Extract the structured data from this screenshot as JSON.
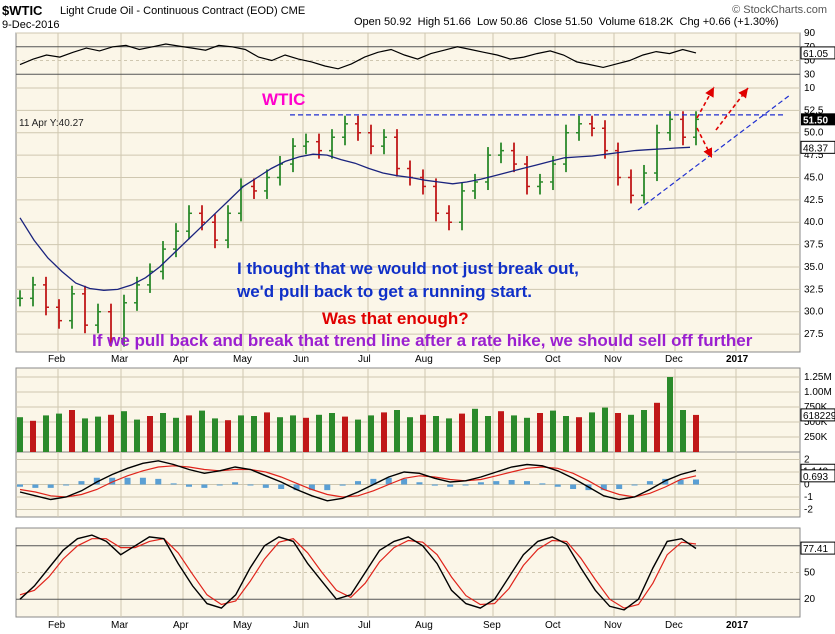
{
  "header": {
    "symbol": "$WTIC",
    "name": "Light Crude Oil - Continuous Contract (EOD)",
    "exchange": "CME",
    "date": "9-Dec-2016",
    "open_label": "Open",
    "open": "50.92",
    "high_label": "High",
    "high": "51.66",
    "low_label": "Low",
    "low": "50.86",
    "close_label": "Close",
    "close": "51.50",
    "volume_label": "Volume",
    "volume": "618.2K",
    "chg_label": "Chg",
    "chg": "+0.66 (+1.30%)",
    "brand": "© StockCharts.com"
  },
  "annotations": {
    "wtic": "WTIC",
    "line1": "I thought that we would not just break out,",
    "line2": "we'd pull back to get a running start.",
    "line3": "Was that enough?",
    "line4": "If we pull back and break that trend line after a rate hike, we should sell off further",
    "hover": "11 Apr Y:40.27"
  },
  "colors": {
    "panel_bg": "#fbf6e8",
    "grid": "#cfc7b0",
    "up": "#2b8a2b",
    "down": "#c01818",
    "ma": "#1a237e",
    "resistance": "#1f2fd0",
    "arrows": "#e00000",
    "macd_hist": "#5a9fd4",
    "signal": "#e0241b",
    "rsi_fill": "#c0c0c0"
  },
  "chart_data": [
    {
      "type": "line",
      "panel": "rsi",
      "ylim": [
        10,
        90
      ],
      "ticks": [
        "90",
        "70",
        "50",
        "30",
        "10"
      ],
      "last_value": "61.05",
      "values": [
        44,
        52,
        58,
        55,
        62,
        68,
        64,
        70,
        72,
        66,
        70,
        74,
        71,
        68,
        65,
        72,
        70,
        66,
        55,
        50,
        58,
        52,
        48,
        42,
        38,
        45,
        55,
        62,
        66,
        58,
        52,
        60,
        65,
        70,
        66,
        62,
        58,
        52,
        55,
        60,
        64,
        58,
        48,
        44,
        40,
        45,
        50,
        58,
        63,
        60,
        66,
        61
      ]
    },
    {
      "type": "bar",
      "panel": "price",
      "title": "",
      "ylim": [
        25.5,
        55
      ],
      "ticks": [
        "27.5",
        "30.0",
        "32.5",
        "35.0",
        "37.5",
        "40.0",
        "42.5",
        "45.0",
        "47.5",
        "50.0",
        "52.5"
      ],
      "x_labels": [
        "Feb",
        "Mar",
        "Apr",
        "May",
        "Jun",
        "Jul",
        "Aug",
        "Sep",
        "Oct",
        "Nov",
        "Dec",
        "2017"
      ],
      "close_label": "51.50",
      "ma_label": "48.37",
      "resistance": 52.0,
      "closes": [
        31.5,
        33.0,
        30.5,
        29.0,
        32.0,
        28.5,
        30.0,
        27.0,
        31.0,
        33.0,
        34.5,
        37.0,
        39.0,
        41.0,
        40.0,
        38.0,
        41.0,
        44.0,
        43.5,
        45.0,
        46.5,
        48.5,
        49.0,
        48.0,
        49.5,
        51.0,
        50.0,
        48.5,
        49.5,
        46.0,
        45.0,
        44.0,
        41.0,
        40.0,
        43.5,
        44.5,
        47.5,
        48.0,
        46.5,
        44.0,
        44.5,
        46.5,
        50.0,
        51.0,
        50.5,
        48.0,
        45.0,
        43.0,
        45.5,
        50.0,
        51.5,
        49.5,
        51.5
      ],
      "ma": [
        40.5,
        38.0,
        36.0,
        34.5,
        33.2,
        32.6,
        32.4,
        32.5,
        33.0,
        33.8,
        35.0,
        36.5,
        38.0,
        39.5,
        41.0,
        42.5,
        44.0,
        45.0,
        46.0,
        46.8,
        47.3,
        47.6,
        47.5,
        47.0,
        46.6,
        46.0,
        45.5,
        45.2,
        45.0,
        44.7,
        44.5,
        44.3,
        44.5,
        44.8,
        45.2,
        45.6,
        46.0,
        46.4,
        46.8,
        47.2,
        47.3,
        47.4,
        47.6,
        47.8,
        48.0,
        48.1,
        48.2,
        48.3,
        48.37
      ]
    },
    {
      "type": "bar",
      "panel": "volume",
      "ticks": [
        "1.25M",
        "1.00M",
        "750K",
        "500K",
        "250K"
      ],
      "last_value": "618229",
      "values": [
        580,
        520,
        610,
        640,
        700,
        560,
        590,
        620,
        680,
        540,
        600,
        650,
        570,
        610,
        690,
        560,
        530,
        610,
        600,
        660,
        580,
        610,
        570,
        620,
        650,
        590,
        540,
        610,
        660,
        700,
        580,
        620,
        600,
        560,
        640,
        720,
        600,
        680,
        610,
        570,
        650,
        690,
        600,
        580,
        660,
        740,
        650,
        620,
        700,
        820,
        1250,
        700,
        618
      ]
    },
    {
      "type": "line",
      "panel": "macd",
      "ylim": [
        -2.6,
        2.6
      ],
      "ticks": [
        "2",
        "1",
        "0",
        "-1",
        "-2"
      ],
      "labels": [
        "1.140",
        "0.693"
      ],
      "macd": [
        -0.6,
        -0.9,
        -1.2,
        -1.0,
        -0.5,
        0.2,
        0.8,
        1.3,
        1.7,
        1.9,
        1.6,
        1.2,
        0.9,
        1.1,
        1.4,
        1.2,
        0.7,
        0.2,
        -0.4,
        -0.9,
        -1.3,
        -1.1,
        -0.6,
        0.0,
        0.6,
        1.0,
        0.9,
        0.5,
        0.2,
        0.3,
        0.6,
        1.0,
        1.4,
        1.6,
        1.5,
        1.1,
        0.5,
        -0.2,
        -0.9,
        -1.2,
        -1.0,
        -0.4,
        0.3,
        0.8,
        1.14
      ],
      "signal": [
        -0.4,
        -0.6,
        -0.9,
        -1.0,
        -0.8,
        -0.4,
        0.2,
        0.7,
        1.1,
        1.4,
        1.5,
        1.4,
        1.2,
        1.1,
        1.2,
        1.2,
        1.0,
        0.6,
        0.1,
        -0.4,
        -0.8,
        -1.0,
        -0.9,
        -0.5,
        0.0,
        0.5,
        0.7,
        0.6,
        0.4,
        0.3,
        0.4,
        0.7,
        1.0,
        1.3,
        1.4,
        1.3,
        0.9,
        0.3,
        -0.4,
        -0.8,
        -1.0,
        -0.7,
        -0.2,
        0.4,
        0.693
      ]
    },
    {
      "type": "line",
      "panel": "stochastic",
      "ylim": [
        0,
        100
      ],
      "ticks": [
        "80",
        "50",
        "20"
      ],
      "last_value": "77.41",
      "k": [
        20,
        35,
        55,
        75,
        88,
        92,
        85,
        70,
        80,
        90,
        88,
        60,
        35,
        15,
        10,
        25,
        55,
        80,
        90,
        85,
        60,
        40,
        20,
        25,
        50,
        75,
        85,
        90,
        80,
        60,
        30,
        15,
        10,
        20,
        45,
        70,
        85,
        90,
        82,
        55,
        30,
        12,
        8,
        20,
        55,
        85,
        88,
        77
      ],
      "d": [
        25,
        30,
        45,
        65,
        80,
        88,
        88,
        78,
        78,
        85,
        88,
        72,
        48,
        25,
        14,
        18,
        40,
        65,
        84,
        88,
        72,
        50,
        30,
        22,
        38,
        62,
        78,
        86,
        84,
        70,
        45,
        24,
        14,
        15,
        32,
        58,
        76,
        86,
        85,
        66,
        42,
        20,
        10,
        14,
        38,
        70,
        84,
        82
      ]
    }
  ]
}
